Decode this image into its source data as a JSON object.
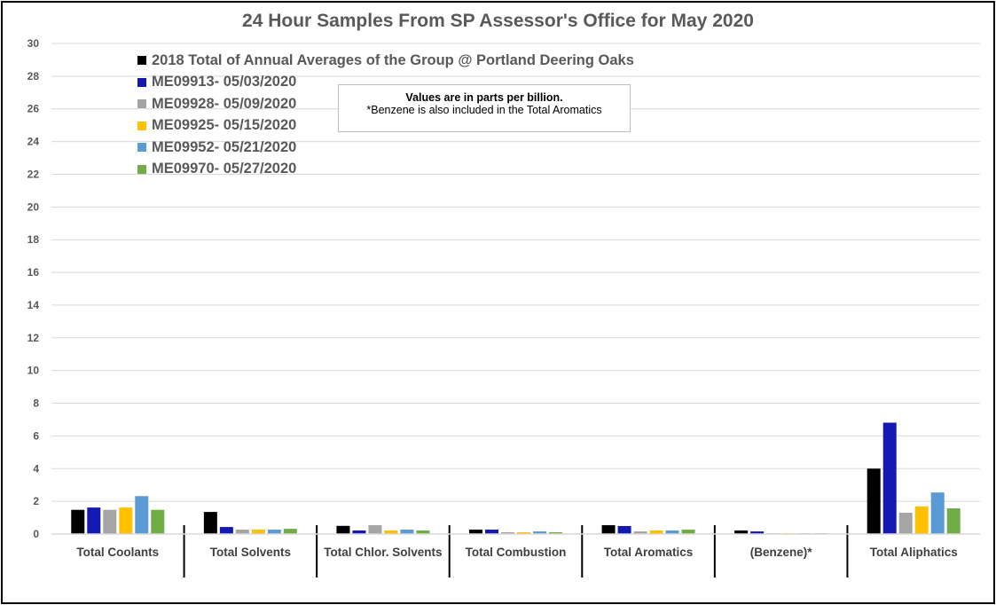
{
  "chart_data": {
    "type": "bar",
    "title": "24 Hour Samples From SP Assessor's Office for May 2020",
    "xlabel": "",
    "ylabel": "",
    "ylim": [
      0,
      30
    ],
    "yticks": [
      0,
      2,
      4,
      6,
      8,
      10,
      12,
      14,
      16,
      18,
      20,
      22,
      24,
      26,
      28,
      30
    ],
    "grid": true,
    "legend_position": "top-left",
    "categories": [
      "Total Coolants",
      "Total Solvents",
      "Total Chlor. Solvents",
      "Total Combustion",
      "Total Aromatics",
      "(Benzene)*",
      "Total Aliphatics"
    ],
    "series": [
      {
        "name": "2018 Total of Annual Averages of the Group @ Portland Deering Oaks",
        "color": "#000000",
        "values": [
          1.48,
          1.35,
          0.5,
          0.27,
          0.54,
          0.22,
          4.0
        ]
      },
      {
        "name": "ME09913- 05/03/2020",
        "color": "#1419B4",
        "values": [
          1.62,
          0.43,
          0.22,
          0.27,
          0.49,
          0.16,
          6.81
        ]
      },
      {
        "name": "ME09928- 05/09/2020",
        "color": "#A5A5A5",
        "values": [
          1.48,
          0.27,
          0.54,
          0.11,
          0.16,
          0.05,
          1.3
        ]
      },
      {
        "name": "ME09925- 05/15/2020",
        "color": "#FFC000",
        "values": [
          1.62,
          0.27,
          0.22,
          0.11,
          0.22,
          0.05,
          1.68
        ]
      },
      {
        "name": "ME09952- 05/21/2020",
        "color": "#5B9BD5",
        "values": [
          2.32,
          0.27,
          0.27,
          0.16,
          0.22,
          0.05,
          2.54
        ]
      },
      {
        "name": "ME09970- 05/27/2020",
        "color": "#70AD47",
        "values": [
          1.48,
          0.32,
          0.22,
          0.11,
          0.27,
          0.05,
          1.57
        ]
      }
    ],
    "annotation": {
      "line1": "Values are in parts per billion.",
      "line2": "*Benzene is also included in the Total Aromatics"
    }
  }
}
